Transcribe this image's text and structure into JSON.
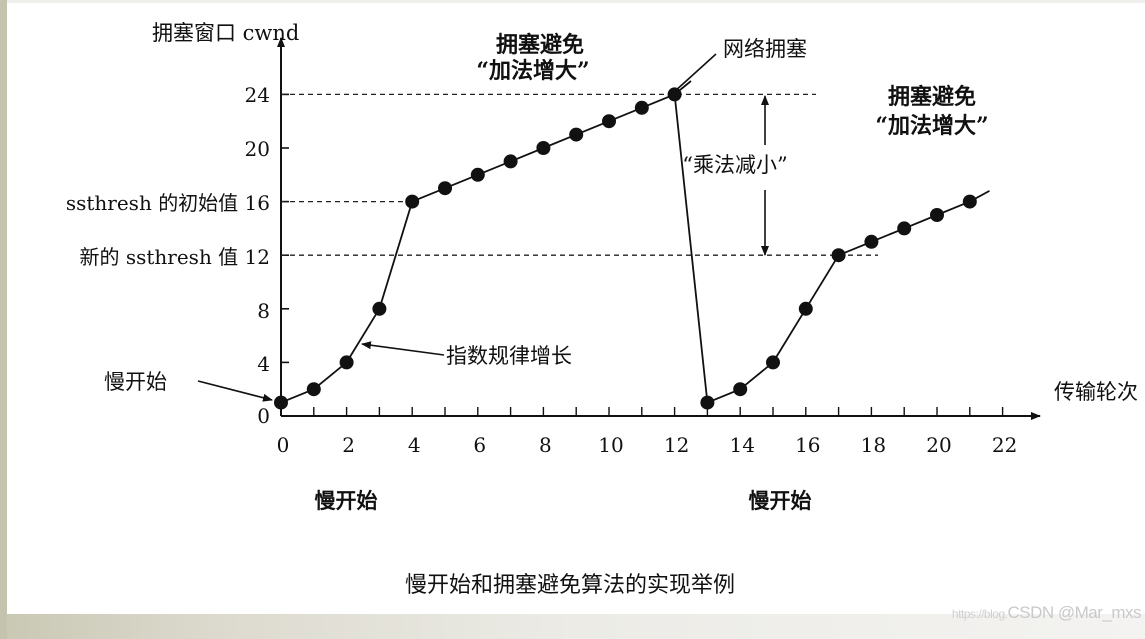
{
  "chart_data": {
    "type": "line",
    "title": "慢开始和拥塞避免算法的实现举例",
    "xlabel": "传输轮次",
    "ylabel": "拥塞窗口 cwnd",
    "xlim": [
      0,
      22
    ],
    "ylim": [
      0,
      24
    ],
    "x_ticks": [
      0,
      2,
      4,
      6,
      8,
      10,
      12,
      14,
      16,
      18,
      20,
      22
    ],
    "y_ticks": [
      0,
      4,
      8,
      12,
      16,
      20,
      24
    ],
    "grid": false,
    "series": [
      {
        "name": "cwnd",
        "x": [
          0,
          1,
          2,
          3,
          4,
          5,
          6,
          7,
          8,
          9,
          10,
          11,
          12,
          13,
          14,
          15,
          16,
          17,
          18,
          19,
          20,
          21
        ],
        "values": [
          1,
          2,
          4,
          8,
          16,
          17,
          18,
          19,
          20,
          21,
          22,
          23,
          24,
          1,
          2,
          4,
          8,
          12,
          13,
          14,
          15,
          16
        ]
      }
    ],
    "reference_lines": [
      {
        "y": 24,
        "style": "dashed",
        "label": "24"
      },
      {
        "y": 16,
        "style": "dashed",
        "label": "ssthresh 的初始值 16"
      },
      {
        "y": 12,
        "style": "dashed",
        "label": "新的 ssthresh 值 12"
      }
    ],
    "annotations": [
      {
        "text": "慢开始",
        "points_to": [
          0,
          1
        ]
      },
      {
        "text": "指数规律增长",
        "points_to": [
          2.5,
          6
        ]
      },
      {
        "text": "拥塞避免",
        "subtext": "“加法增大”",
        "region": "top-middle"
      },
      {
        "text": "网络拥塞",
        "points_to": [
          12,
          24
        ]
      },
      {
        "text": "“乘法减小”",
        "between": [
          24,
          12
        ]
      },
      {
        "text": "拥塞避免",
        "subtext": "“加法增大”",
        "region": "right"
      },
      {
        "text": "慢开始",
        "region": "below x 0-4"
      },
      {
        "text": "慢开始",
        "region": "below x 13-17"
      }
    ]
  },
  "labels": {
    "y_axis_title": "拥塞窗口 cwnd",
    "x_axis_title": "传输轮次",
    "y_tick_24": "24",
    "y_tick_20": "20",
    "y_tick_16": "ssthresh 的初始值 16",
    "y_tick_12": "新的 ssthresh 值 12",
    "y_tick_8": "8",
    "y_tick_4": "4",
    "y_tick_0": "0",
    "x_ticks": [
      "0",
      "2",
      "4",
      "6",
      "8",
      "10",
      "12",
      "14",
      "16",
      "18",
      "20",
      "22"
    ],
    "slow_start_left": "慢开始",
    "exp_growth": "指数规律增长",
    "ca_top_line1": "拥塞避免",
    "ca_top_line2": "“加法增大”",
    "congestion": "网络拥塞",
    "mult_decrease": "“乘法减小”",
    "ca_right_line1": "拥塞避免",
    "ca_right_line2": "“加法增大”",
    "slow_start_below_1": "慢开始",
    "slow_start_below_2": "慢开始",
    "caption": "慢开始和拥塞避免算法的实现举例"
  },
  "watermark": {
    "url": "https://blog.",
    "text": "CSDN @Mar_mxs"
  }
}
